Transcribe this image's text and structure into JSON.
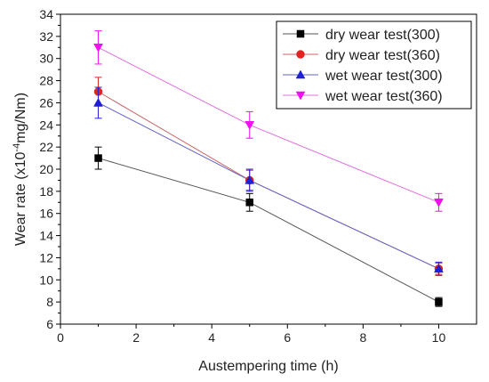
{
  "chart_data": {
    "type": "line",
    "title": "",
    "xlabel": "Austempering time (h)",
    "ylabel": {
      "prefix": "Wear rate (x10",
      "sup": "-4",
      "suffix": "mg/Nm)"
    },
    "xlim": [
      0,
      11
    ],
    "ylim": [
      6,
      34
    ],
    "xticks": [
      0,
      2,
      4,
      6,
      8,
      10
    ],
    "yticks": [
      6,
      8,
      10,
      12,
      14,
      16,
      18,
      20,
      22,
      24,
      26,
      28,
      30,
      32,
      34
    ],
    "grid": false,
    "legend": "top-right",
    "series": [
      {
        "name": "dry wear test(300)",
        "marker": "square",
        "marker_color": "#000000",
        "line_color": "#555555",
        "x": [
          1,
          5,
          10
        ],
        "y": [
          21,
          17,
          8
        ],
        "err": [
          1.0,
          0.8,
          0.4
        ]
      },
      {
        "name": "dry wear test(360)",
        "marker": "circle",
        "marker_color": "#e32222",
        "line_color": "#c86464",
        "x": [
          1,
          5,
          10
        ],
        "y": [
          27,
          19,
          11
        ],
        "err": [
          1.3,
          0.9,
          0.5
        ]
      },
      {
        "name": "wet wear test(300)",
        "marker": "triangle-up",
        "marker_color": "#1f1fd6",
        "line_color": "#6464c8",
        "x": [
          1,
          5,
          10
        ],
        "y": [
          26,
          19,
          11
        ],
        "err": [
          1.4,
          1.0,
          0.6
        ]
      },
      {
        "name": "wet wear test(360)",
        "marker": "triangle-down",
        "marker_color": "#f010f0",
        "line_color": "#e070e0",
        "x": [
          1,
          5,
          10
        ],
        "y": [
          31,
          24,
          17
        ],
        "err": [
          1.5,
          1.2,
          0.8
        ]
      }
    ]
  }
}
